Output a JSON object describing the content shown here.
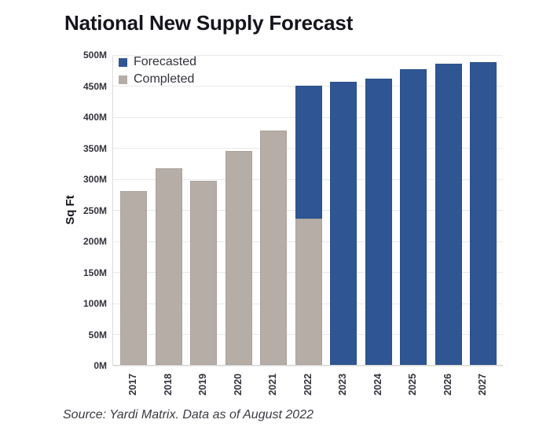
{
  "page_title": "National New Supply Forecast",
  "chart_data": {
    "type": "bar",
    "stacked": true,
    "title": "National New Supply Forecast",
    "ylabel": "Sq Ft",
    "source_note": "Source: Yardi Matrix. Data as of August 2022",
    "categories": [
      "2017",
      "2018",
      "2019",
      "2020",
      "2021",
      "2022",
      "2023",
      "2024",
      "2025",
      "2026",
      "2027"
    ],
    "series": [
      {
        "name": "Forecasted",
        "color": "#2F5693",
        "values": [
          0,
          0,
          0,
          0,
          0,
          215,
          456,
          461,
          476,
          485,
          487
        ]
      },
      {
        "name": "Completed",
        "color": "#B6ADA7",
        "values": [
          280,
          317,
          296,
          344,
          377,
          235,
          0,
          0,
          0,
          0,
          0
        ]
      }
    ],
    "totals": [
      280,
      317,
      296,
      344,
      377,
      450,
      456,
      461,
      476,
      485,
      487
    ],
    "ylim": [
      0,
      500
    ],
    "ytick_step": 50,
    "ytick_suffix": "M",
    "grid": true,
    "legend_position": "top-left",
    "legend": [
      {
        "label": "Forecasted",
        "color": "#2F5693"
      },
      {
        "label": "Completed",
        "color": "#B6ADA7"
      }
    ]
  },
  "styles": {
    "background": "#FFFFFF",
    "title_color": "#15151D",
    "tick_color": "#32323C",
    "grid_color": "#E9E9E9",
    "forecasted_color": "#2F5693",
    "completed_color": "#B6ADA7"
  }
}
